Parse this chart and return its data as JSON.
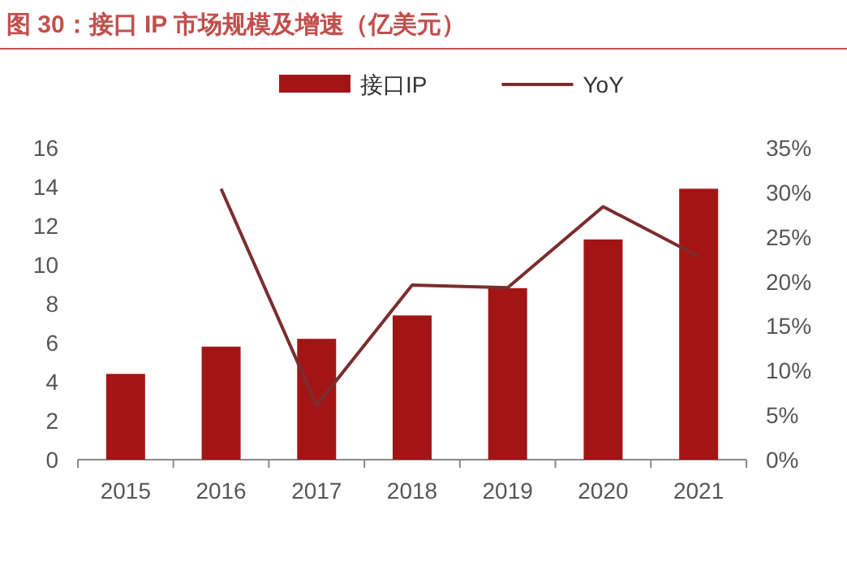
{
  "chart_data": {
    "type": "bar",
    "title": "图 30：接口 IP 市场规模及增速（亿美元）",
    "categories": [
      "2015",
      "2016",
      "2017",
      "2018",
      "2019",
      "2020",
      "2021"
    ],
    "series": [
      {
        "name": "接口IP",
        "color": "#a31515",
        "values": [
          4.4,
          5.8,
          6.2,
          7.4,
          8.8,
          11.3,
          13.9
        ]
      },
      {
        "name": "YoY",
        "type": "line",
        "axis": "y2",
        "color": "#7b2d2d",
        "values": [
          null,
          0.304,
          0.061,
          0.196,
          0.193,
          0.284,
          0.228
        ]
      }
    ],
    "ylim": [
      0,
      16
    ],
    "yticks": [
      0,
      2,
      4,
      6,
      8,
      10,
      12,
      14,
      16
    ],
    "y2lim": [
      0,
      0.35
    ],
    "y2ticks": [
      {
        "value": 0,
        "label": "0%"
      },
      {
        "value": 0.05,
        "label": "5%"
      },
      {
        "value": 0.1,
        "label": "10%"
      },
      {
        "value": 0.15,
        "label": "15%"
      },
      {
        "value": 0.2,
        "label": "20%"
      },
      {
        "value": 0.25,
        "label": "25%"
      },
      {
        "value": 0.3,
        "label": "30%"
      },
      {
        "value": 0.35,
        "label": "35%"
      }
    ],
    "legend": "top",
    "grid": false,
    "marker": "none"
  }
}
